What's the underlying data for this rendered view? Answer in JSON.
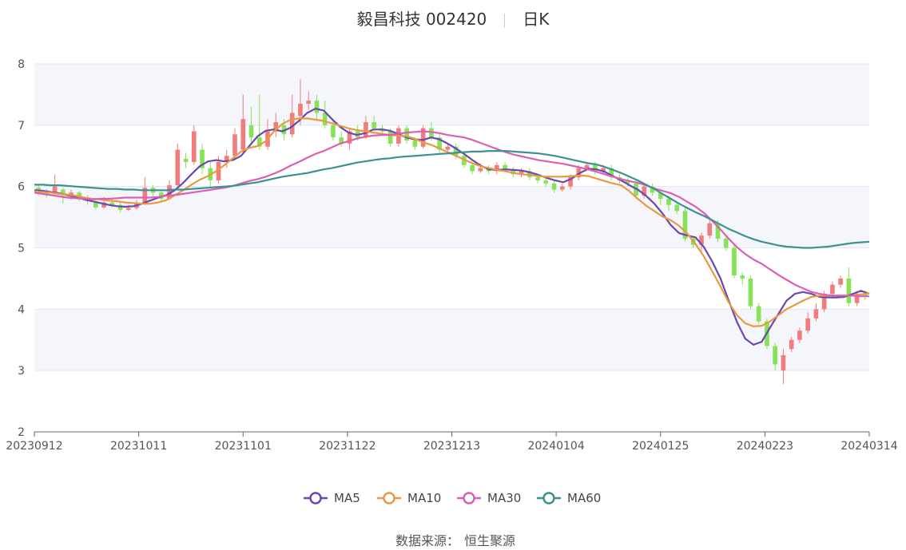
{
  "header": {
    "stock_name": "毅昌科技",
    "code": "002420",
    "period": "日K"
  },
  "source": {
    "label": "数据来源：",
    "value": "恒生聚源"
  },
  "colors": {
    "up": "#f27b7b",
    "down": "#86e256",
    "ma5": "#6a48b0",
    "ma10": "#e89a42",
    "ma30": "#dc5fb5",
    "ma60": "#3d9191"
  },
  "chart_data": {
    "type": "candlestick",
    "ylim": [
      2,
      8
    ],
    "yticks": [
      2,
      3,
      4,
      5,
      6,
      7,
      8
    ],
    "xticks": [
      "20230912",
      "20231011",
      "20231101",
      "20231122",
      "20231213",
      "20240104",
      "20240125",
      "20240223",
      "20240314"
    ],
    "legend": [
      "MA5",
      "MA10",
      "MA30",
      "MA60"
    ],
    "ma_series": [
      {
        "name": "MA5",
        "values": [
          5.94,
          5.93,
          5.91,
          5.89,
          5.86,
          5.83,
          5.79,
          5.76,
          5.73,
          5.7,
          5.68,
          5.67,
          5.68,
          5.72,
          5.77,
          5.82,
          5.86,
          5.94,
          6.06,
          6.2,
          6.33,
          6.41,
          6.43,
          6.41,
          6.43,
          6.5,
          6.66,
          6.82,
          6.91,
          6.93,
          6.9,
          6.96,
          7.07,
          7.2,
          7.27,
          7.24,
          7.1,
          6.97,
          6.88,
          6.84,
          6.87,
          6.93,
          6.93,
          6.91,
          6.86,
          6.8,
          6.77,
          6.76,
          6.8,
          6.77,
          6.7,
          6.62,
          6.53,
          6.43,
          6.34,
          6.28,
          6.27,
          6.28,
          6.27,
          6.26,
          6.23,
          6.19,
          6.14,
          6.1,
          6.07,
          6.13,
          6.22,
          6.29,
          6.28,
          6.24,
          6.17,
          6.1,
          6.02,
          5.95,
          5.85,
          5.72,
          5.56,
          5.37,
          5.24,
          5.2,
          5.17,
          5.01,
          4.78,
          4.5,
          4.14,
          3.79,
          3.52,
          3.42,
          3.47,
          3.7,
          3.92,
          4.14,
          4.25,
          4.28,
          4.25,
          4.2,
          4.19,
          4.19,
          4.2,
          4.25,
          4.3,
          4.25
        ]
      },
      {
        "name": "MA10",
        "values": [
          5.92,
          5.91,
          5.9,
          5.88,
          5.87,
          5.85,
          5.82,
          5.8,
          5.79,
          5.77,
          5.76,
          5.74,
          5.73,
          5.72,
          5.72,
          5.74,
          5.78,
          5.86,
          5.94,
          6.03,
          6.11,
          6.17,
          6.25,
          6.35,
          6.46,
          6.57,
          6.63,
          6.66,
          6.74,
          6.9,
          7.02,
          7.09,
          7.11,
          7.11,
          7.09,
          7.07,
          7.03,
          6.99,
          6.95,
          6.92,
          6.9,
          6.88,
          6.86,
          6.84,
          6.83,
          6.82,
          6.78,
          6.72,
          6.68,
          6.62,
          6.56,
          6.5,
          6.44,
          6.38,
          6.33,
          6.3,
          6.27,
          6.25,
          6.22,
          6.2,
          6.19,
          6.17,
          6.16,
          6.16,
          6.16,
          6.17,
          6.18,
          6.17,
          6.13,
          6.09,
          6.05,
          6.02,
          5.92,
          5.8,
          5.69,
          5.6,
          5.51,
          5.45,
          5.36,
          5.23,
          5.06,
          4.86,
          4.62,
          4.37,
          4.11,
          3.9,
          3.77,
          3.72,
          3.73,
          3.8,
          3.9,
          4.0,
          4.07,
          4.14,
          4.2,
          4.22,
          4.22,
          4.22,
          4.22,
          4.22,
          4.24,
          4.26
        ]
      },
      {
        "name": "MA30",
        "values": [
          5.9,
          5.88,
          5.86,
          5.84,
          5.82,
          5.81,
          5.8,
          5.79,
          5.8,
          5.8,
          5.81,
          5.82,
          5.82,
          5.82,
          5.82,
          5.83,
          5.85,
          5.86,
          5.88,
          5.9,
          5.92,
          5.94,
          5.96,
          5.98,
          6.01,
          6.05,
          6.09,
          6.12,
          6.16,
          6.21,
          6.27,
          6.34,
          6.4,
          6.47,
          6.53,
          6.58,
          6.64,
          6.7,
          6.74,
          6.78,
          6.81,
          6.83,
          6.84,
          6.84,
          6.86,
          6.88,
          6.89,
          6.9,
          6.89,
          6.87,
          6.84,
          6.82,
          6.8,
          6.76,
          6.71,
          6.66,
          6.61,
          6.56,
          6.52,
          6.49,
          6.46,
          6.43,
          6.41,
          6.39,
          6.37,
          6.34,
          6.31,
          6.28,
          6.24,
          6.2,
          6.16,
          6.12,
          6.09,
          6.06,
          6.02,
          5.97,
          5.93,
          5.89,
          5.83,
          5.75,
          5.67,
          5.57,
          5.44,
          5.3,
          5.15,
          5.01,
          4.9,
          4.81,
          4.74,
          4.65,
          4.56,
          4.48,
          4.4,
          4.34,
          4.28,
          4.25,
          4.23,
          4.22,
          4.22,
          4.22,
          4.21,
          4.21
        ]
      },
      {
        "name": "MA60",
        "values": [
          6.03,
          6.03,
          6.02,
          6.02,
          6.01,
          6.0,
          5.99,
          5.98,
          5.97,
          5.96,
          5.96,
          5.95,
          5.95,
          5.94,
          5.94,
          5.94,
          5.94,
          5.95,
          5.95,
          5.96,
          5.97,
          5.98,
          5.99,
          6.0,
          6.01,
          6.03,
          6.05,
          6.07,
          6.1,
          6.13,
          6.16,
          6.18,
          6.2,
          6.22,
          6.25,
          6.28,
          6.3,
          6.33,
          6.36,
          6.39,
          6.41,
          6.43,
          6.45,
          6.46,
          6.48,
          6.49,
          6.5,
          6.51,
          6.52,
          6.53,
          6.54,
          6.55,
          6.56,
          6.57,
          6.57,
          6.58,
          6.58,
          6.58,
          6.57,
          6.56,
          6.55,
          6.54,
          6.52,
          6.5,
          6.47,
          6.44,
          6.41,
          6.38,
          6.36,
          6.32,
          6.27,
          6.22,
          6.16,
          6.1,
          6.03,
          5.96,
          5.88,
          5.8,
          5.72,
          5.65,
          5.58,
          5.52,
          5.45,
          5.38,
          5.31,
          5.25,
          5.19,
          5.14,
          5.1,
          5.07,
          5.04,
          5.02,
          5.01,
          5.0,
          5.0,
          5.01,
          5.02,
          5.04,
          5.06,
          5.08,
          5.09,
          5.1
        ]
      }
    ],
    "candles": [
      [
        5.98,
        5.92,
        6.02,
        5.85
      ],
      [
        5.92,
        5.88,
        5.96,
        5.82
      ],
      [
        5.88,
        6.0,
        6.2,
        5.84
      ],
      [
        5.95,
        5.86,
        5.98,
        5.72
      ],
      [
        5.86,
        5.9,
        5.95,
        5.78
      ],
      [
        5.9,
        5.82,
        5.93,
        5.76
      ],
      [
        5.82,
        5.76,
        5.86,
        5.7
      ],
      [
        5.76,
        5.66,
        5.8,
        5.62
      ],
      [
        5.66,
        5.74,
        5.83,
        5.64
      ],
      [
        5.74,
        5.7,
        5.8,
        5.66
      ],
      [
        5.7,
        5.62,
        5.74,
        5.58
      ],
      [
        5.62,
        5.65,
        5.7,
        5.6
      ],
      [
        5.65,
        5.72,
        5.78,
        5.62
      ],
      [
        5.72,
        5.98,
        6.15,
        5.7
      ],
      [
        5.98,
        5.9,
        6.02,
        5.84
      ],
      [
        5.9,
        5.8,
        5.95,
        5.75
      ],
      [
        5.8,
        6.02,
        6.1,
        5.78
      ],
      [
        6.02,
        6.6,
        6.7,
        6.0
      ],
      [
        6.45,
        6.4,
        6.55,
        6.3
      ],
      [
        6.4,
        6.9,
        7.0,
        6.35
      ],
      [
        6.6,
        6.3,
        6.7,
        6.2
      ],
      [
        6.3,
        6.1,
        6.4,
        6.0
      ],
      [
        6.1,
        6.4,
        6.5,
        6.05
      ],
      [
        6.4,
        6.5,
        6.6,
        6.3
      ],
      [
        6.5,
        6.85,
        6.95,
        6.45
      ],
      [
        6.6,
        7.1,
        7.5,
        6.55
      ],
      [
        7.0,
        6.8,
        7.3,
        6.7
      ],
      [
        6.8,
        6.65,
        7.5,
        6.6
      ],
      [
        6.65,
        6.9,
        7.1,
        6.6
      ],
      [
        6.9,
        7.05,
        7.2,
        6.8
      ],
      [
        7.0,
        6.85,
        7.1,
        6.75
      ],
      [
        6.85,
        7.2,
        7.5,
        6.8
      ],
      [
        7.15,
        7.35,
        7.75,
        7.0
      ],
      [
        7.35,
        7.4,
        7.55,
        7.25
      ],
      [
        7.4,
        7.2,
        7.5,
        7.1
      ],
      [
        7.2,
        7.0,
        7.4,
        6.95
      ],
      [
        7.0,
        6.8,
        7.1,
        6.75
      ],
      [
        6.8,
        6.7,
        6.9,
        6.65
      ],
      [
        6.7,
        6.9,
        6.95,
        6.6
      ],
      [
        6.9,
        6.8,
        7.0,
        6.75
      ],
      [
        6.8,
        7.05,
        7.15,
        6.78
      ],
      [
        7.05,
        6.95,
        7.15,
        6.9
      ],
      [
        6.95,
        6.9,
        7.0,
        6.85
      ],
      [
        6.9,
        6.7,
        6.95,
        6.65
      ],
      [
        6.7,
        6.95,
        7.0,
        6.65
      ],
      [
        6.95,
        6.75,
        7.0,
        6.7
      ],
      [
        6.75,
        6.65,
        6.8,
        6.6
      ],
      [
        6.65,
        6.95,
        7.0,
        6.62
      ],
      [
        6.95,
        6.8,
        7.05,
        6.75
      ],
      [
        6.8,
        6.6,
        6.85,
        6.55
      ],
      [
        6.6,
        6.65,
        6.7,
        6.55
      ],
      [
        6.65,
        6.5,
        6.7,
        6.45
      ],
      [
        6.5,
        6.35,
        6.55,
        6.3
      ],
      [
        6.35,
        6.25,
        6.4,
        6.2
      ],
      [
        6.25,
        6.3,
        6.38,
        6.22
      ],
      [
        6.3,
        6.25,
        6.35,
        6.2
      ],
      [
        6.25,
        6.35,
        6.4,
        6.2
      ],
      [
        6.35,
        6.28,
        6.4,
        6.25
      ],
      [
        6.28,
        6.2,
        6.32,
        6.15
      ],
      [
        6.2,
        6.25,
        6.3,
        6.15
      ],
      [
        6.25,
        6.15,
        6.3,
        6.1
      ],
      [
        6.15,
        6.1,
        6.2,
        6.05
      ],
      [
        6.1,
        6.05,
        6.15,
        6.0
      ],
      [
        6.05,
        5.95,
        6.1,
        5.9
      ],
      [
        5.95,
        6.0,
        6.05,
        5.92
      ],
      [
        6.0,
        6.15,
        6.2,
        5.95
      ],
      [
        6.15,
        6.3,
        6.35,
        6.1
      ],
      [
        6.3,
        6.35,
        6.4,
        6.25
      ],
      [
        6.35,
        6.25,
        6.4,
        6.2
      ],
      [
        6.25,
        6.3,
        6.35,
        6.2
      ],
      [
        6.3,
        6.15,
        6.35,
        6.1
      ],
      [
        6.15,
        6.1,
        6.2,
        6.05
      ],
      [
        6.1,
        6.05,
        6.15,
        6.0
      ],
      [
        6.05,
        5.85,
        6.1,
        5.8
      ],
      [
        5.85,
        6.0,
        6.05,
        5.8
      ],
      [
        6.0,
        5.9,
        6.05,
        5.85
      ],
      [
        5.9,
        5.8,
        5.95,
        5.7
      ],
      [
        5.8,
        5.7,
        5.85,
        5.6
      ],
      [
        5.7,
        5.6,
        5.75,
        5.55
      ],
      [
        5.6,
        5.15,
        5.65,
        5.1
      ],
      [
        5.15,
        5.05,
        5.2,
        5.0
      ],
      [
        5.05,
        5.2,
        5.25,
        4.95
      ],
      [
        5.2,
        5.4,
        5.45,
        5.15
      ],
      [
        5.4,
        5.15,
        5.45,
        5.1
      ],
      [
        5.15,
        5.0,
        5.2,
        4.95
      ],
      [
        5.0,
        4.55,
        5.05,
        4.5
      ],
      [
        4.55,
        4.5,
        4.6,
        4.4
      ],
      [
        4.5,
        4.05,
        4.55,
        4.0
      ],
      [
        4.05,
        3.8,
        4.1,
        3.75
      ],
      [
        3.8,
        3.4,
        3.85,
        3.35
      ],
      [
        3.4,
        3.1,
        3.45,
        3.0
      ],
      [
        3.0,
        3.25,
        3.35,
        2.78
      ],
      [
        3.35,
        3.5,
        3.55,
        3.3
      ],
      [
        3.5,
        3.65,
        3.7,
        3.45
      ],
      [
        3.65,
        3.85,
        3.95,
        3.6
      ],
      [
        3.85,
        4.0,
        4.1,
        3.8
      ],
      [
        4.0,
        4.25,
        4.3,
        3.95
      ],
      [
        4.25,
        4.4,
        4.45,
        4.2
      ],
      [
        4.4,
        4.5,
        4.55,
        4.35
      ],
      [
        4.5,
        4.1,
        4.68,
        4.05
      ],
      [
        4.1,
        4.25,
        4.3,
        4.05
      ],
      [
        4.25,
        4.2,
        4.3,
        4.15
      ]
    ]
  }
}
